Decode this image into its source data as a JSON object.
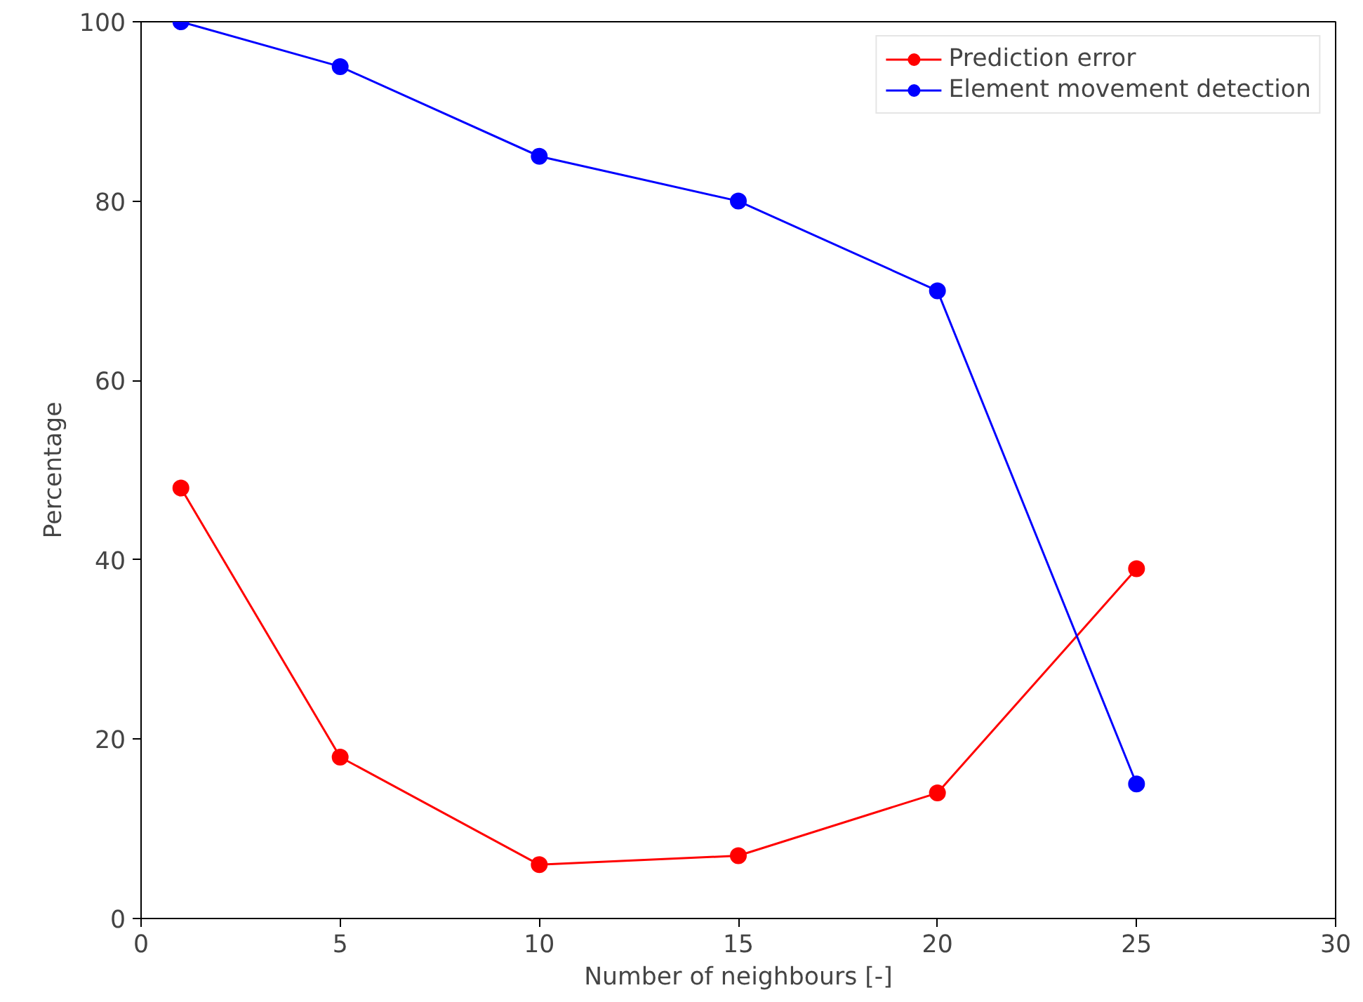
{
  "chart_data": {
    "type": "line",
    "xlabel": "Number of neighbours [-]",
    "ylabel": "Percentage",
    "x": [
      1,
      5,
      10,
      15,
      20,
      25
    ],
    "series": [
      {
        "name": "Prediction error",
        "color": "#ff0000",
        "values": [
          48,
          18,
          6,
          7,
          14,
          39
        ]
      },
      {
        "name": "Element movement detection",
        "color": "#0000ff",
        "values": [
          100,
          95,
          85,
          80,
          70,
          15
        ]
      }
    ],
    "xlim": [
      0,
      30
    ],
    "ylim": [
      0,
      100
    ],
    "xticks": [
      0,
      5,
      10,
      15,
      20,
      25,
      30
    ],
    "yticks": [
      0,
      20,
      40,
      60,
      80,
      100
    ],
    "grid": false,
    "legend": "top right",
    "marker": "circle",
    "line_style": "solid"
  }
}
